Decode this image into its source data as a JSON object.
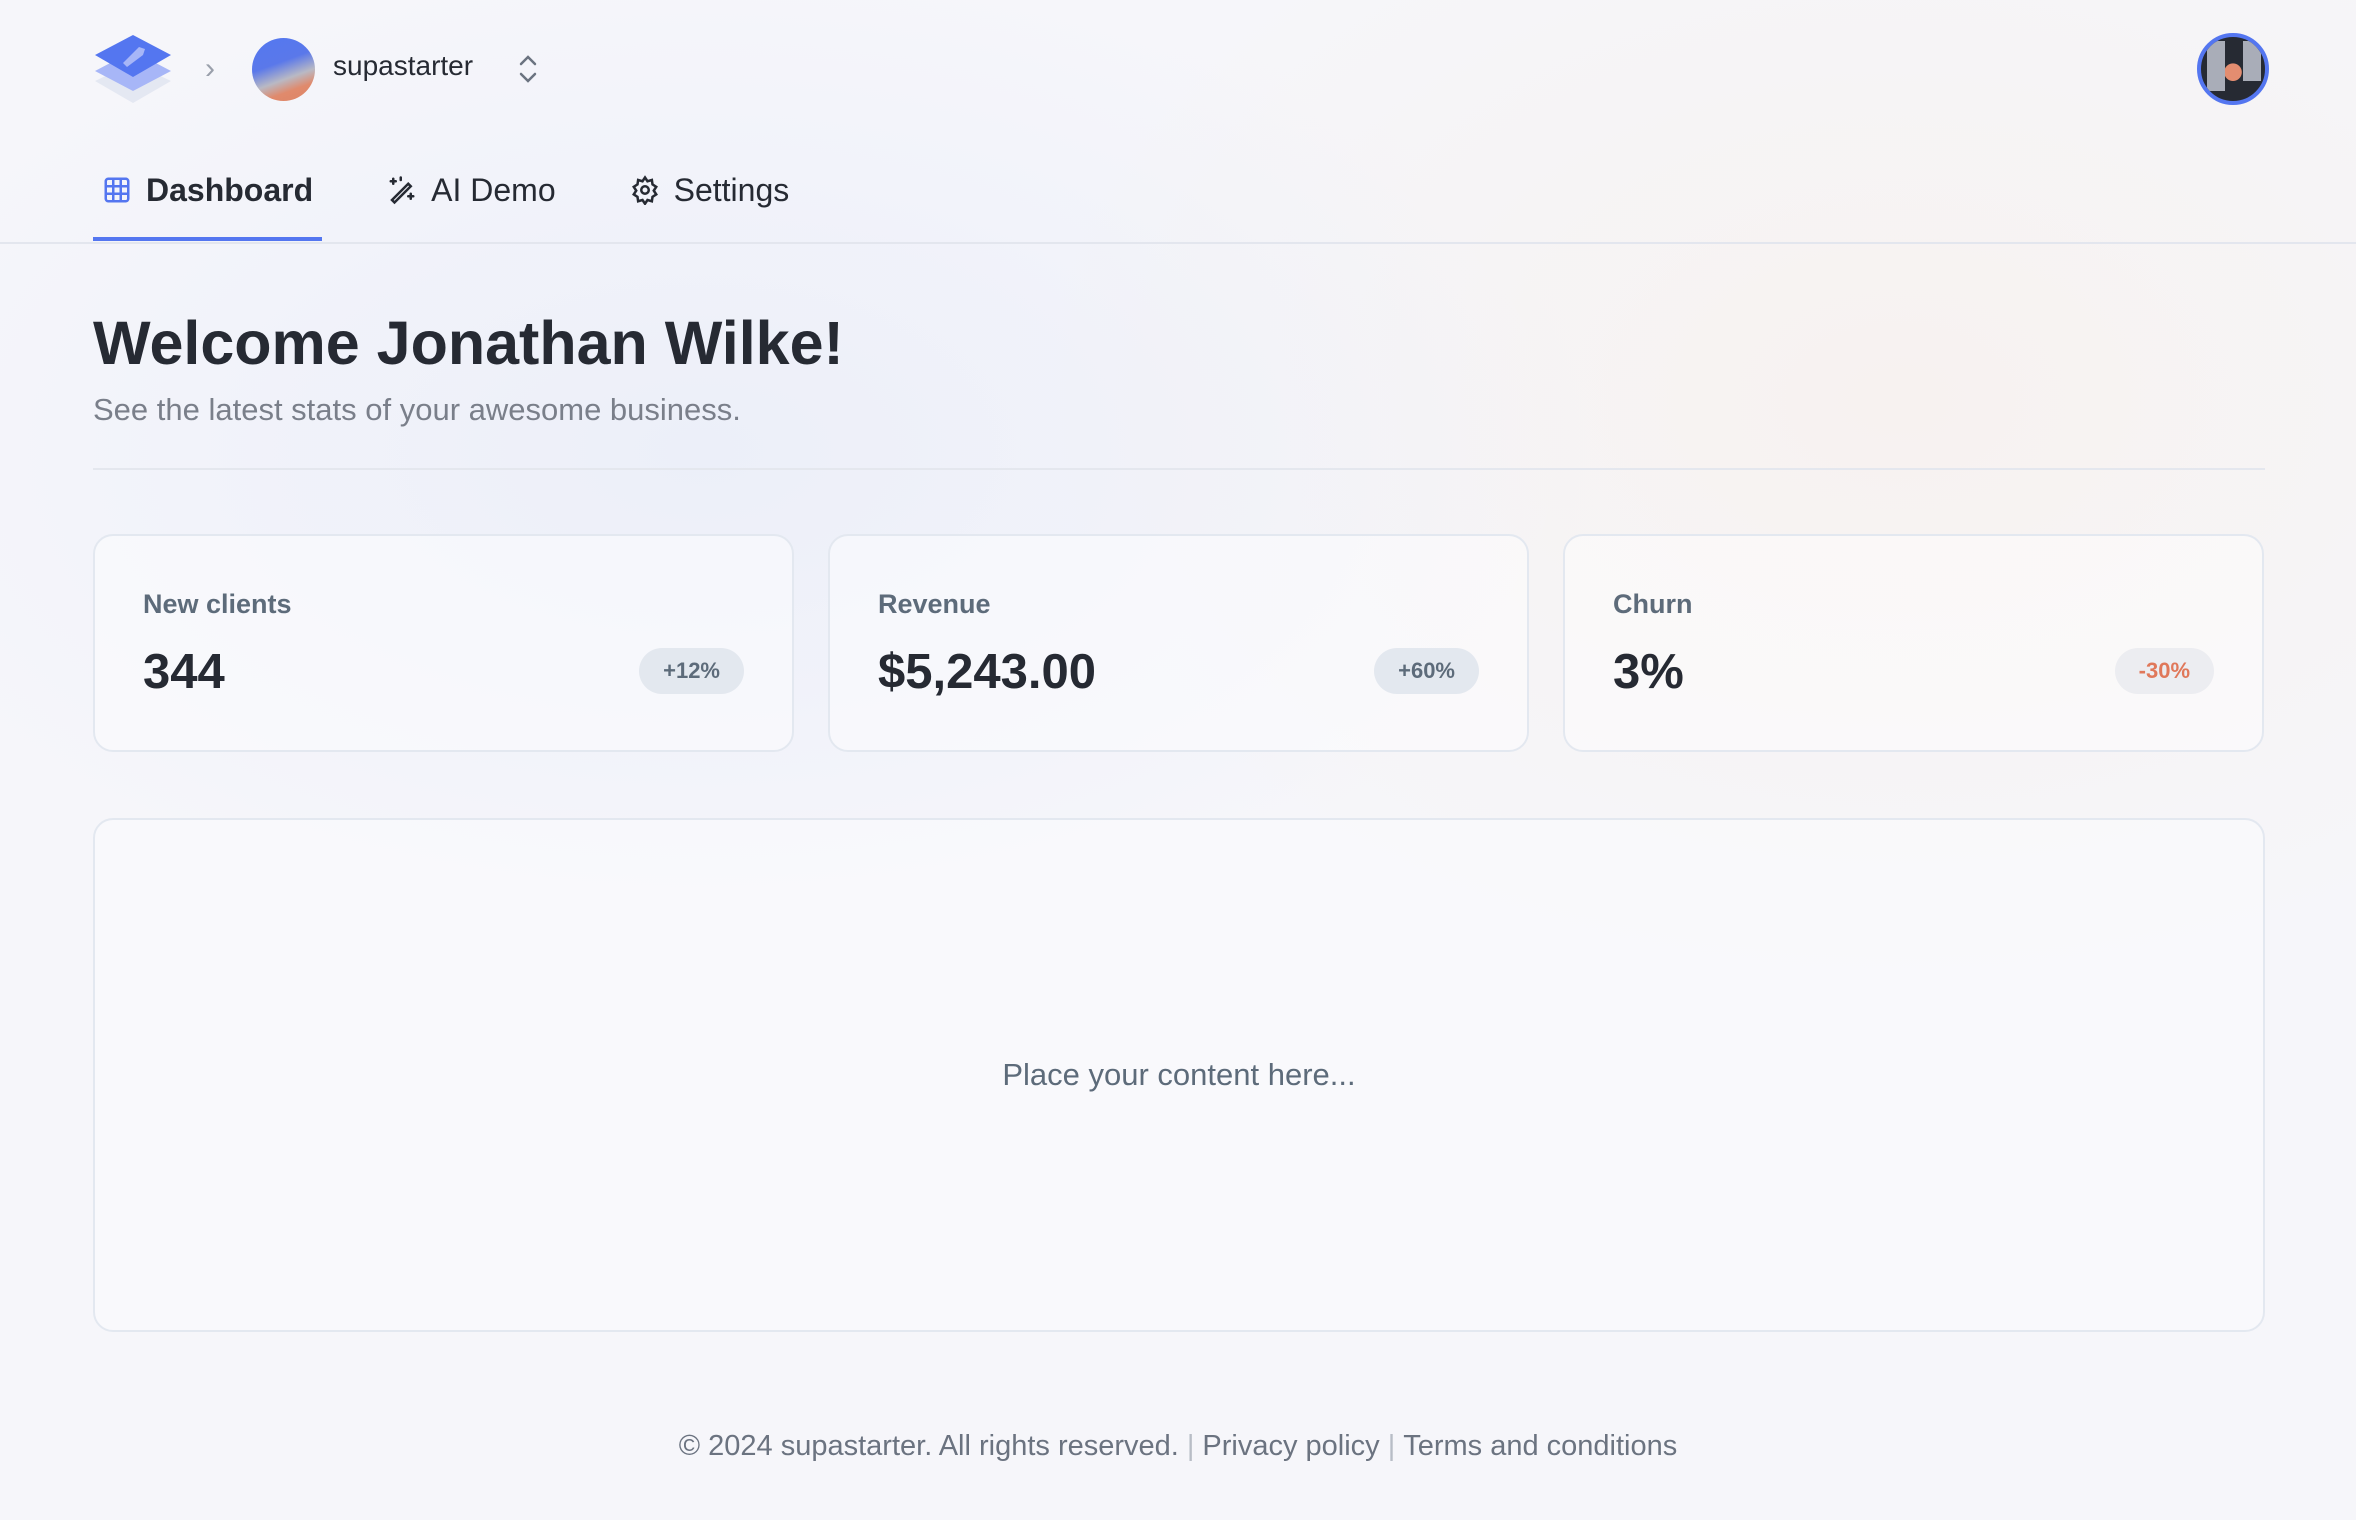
{
  "header": {
    "org_name": "supastarter",
    "brand_color": "#5476f0",
    "logo_icon": "rocket-stack-logo",
    "user_avatar": "user-photo"
  },
  "tabs": [
    {
      "label": "Dashboard",
      "icon": "grid-icon",
      "active": true
    },
    {
      "label": "AI Demo",
      "icon": "magic-wand-icon"
    },
    {
      "label": "Settings",
      "icon": "gear-icon"
    }
  ],
  "page": {
    "title": "Welcome Jonathan Wilke!",
    "subtitle": "See the latest stats of your awesome business."
  },
  "stats": [
    {
      "label": "New clients",
      "value": "344",
      "trend": "+12%"
    },
    {
      "label": "Revenue",
      "value": "$5,243.00",
      "trend": "+60%"
    },
    {
      "label": "Churn",
      "value": "3%",
      "trend": "-30%",
      "negative_color": "#e0785a"
    }
  ],
  "content": {
    "placeholder": "Place your content here..."
  },
  "footer": {
    "copyright": "© 2024 supastarter. All rights reserved.",
    "sep": "|",
    "privacy": "Privacy policy",
    "terms": "Terms and conditions"
  }
}
